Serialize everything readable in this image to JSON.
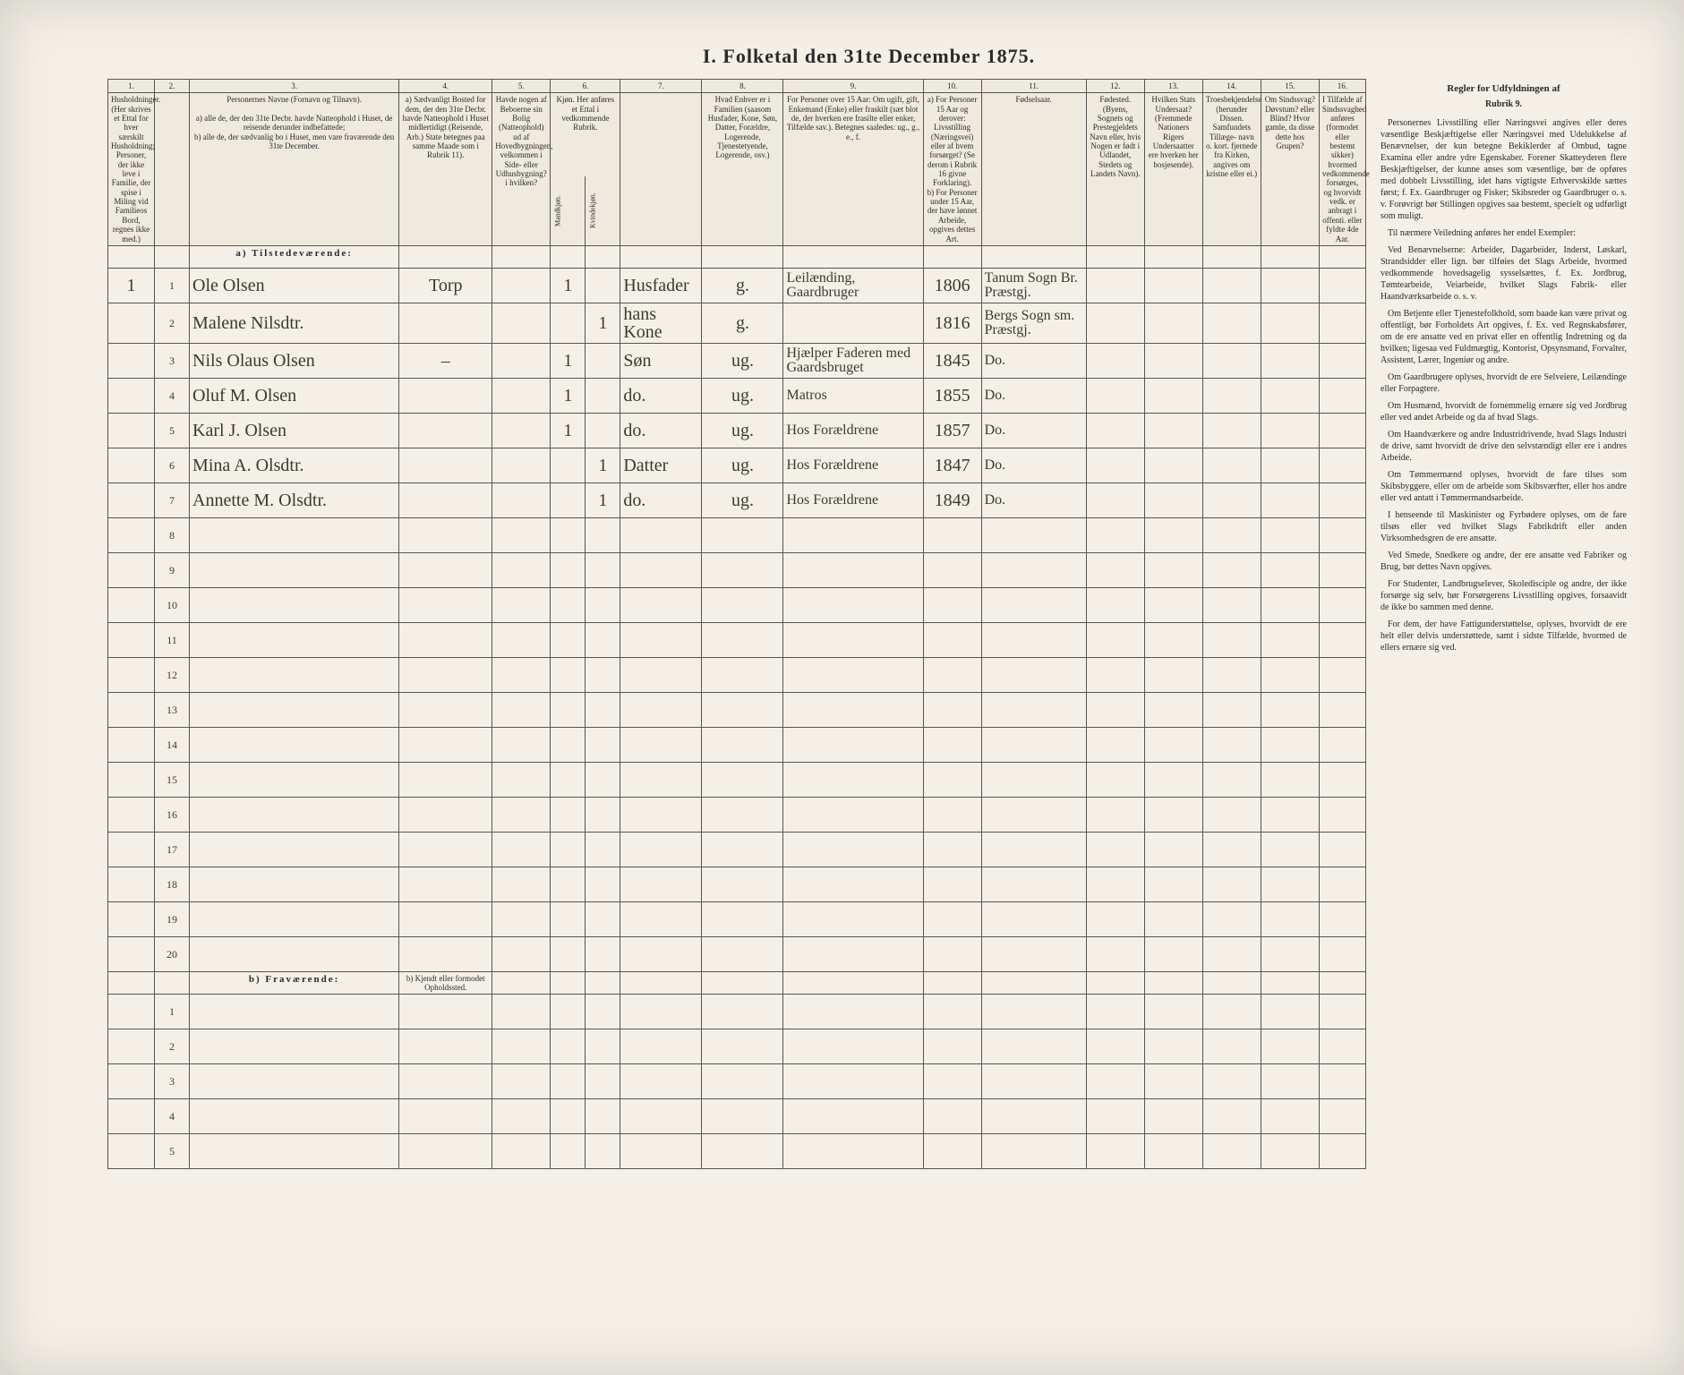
{
  "title": "I. Folketal den 31te December 1875.",
  "column_numbers": [
    "1.",
    "2.",
    "3.",
    "4.",
    "5.",
    "6.",
    "7.",
    "8.",
    "9.",
    "10.",
    "11.",
    "12.",
    "13.",
    "14.",
    "15.",
    "16."
  ],
  "column_widths_pct": [
    4,
    3,
    18,
    8,
    5,
    3,
    3,
    7,
    7,
    12,
    5,
    9,
    5,
    5,
    5,
    5,
    4
  ],
  "headers_row1": [
    "Husholdninger. (Her skrives et Ettal for hver særskilt Husholdning; Personer, der ikke leve i Familie, der spise i Miling vid Familieos Bord, regnes ikke med.)",
    "",
    "Personernes Navne (Fornavn og Tilnavn).\n\na) alle de, der den 31te Decbr. havde Natteophold i Huset, de reisende derunder indbefattede;\nb) alle de, der sædvanlig bo i Huset, men vare fraværende den 31te December.",
    "a) Sædvanligt Bosted for dem, der den 31te Decbr. havde Natteophold i Huset midlertidigt (Reisende, Arb.)  State betegnes paa samme Maade som i Rubrik 11).",
    "Havde nogen af Beboerne sin Bolig (Natteophold) ud af Hovedbygningen, velkommen i Side- eller Udhusbygning? i hvilken?",
    "Kjøn. Her anføres et Ettal i vedkommende Rubrik.",
    "",
    "Hvad Enhver er i Familien (saasom Husfader, Kone, Søn, Datter, Forældre, Logerende, Tjenestetyende, Logerende, osv.)",
    "For Personer over 15 Aar: Om ugift, gift, Enkemand (Enke) eller fraskilt (sæt blot de, der hverken ere frasilte eller enker, Tilfælde sav.). Betegnes saaledes: ug., g., e., f.",
    "a) For Personer 15 Aar og derover: Livsstilling (Næringsvei) eller af hvem forsørget? (Se derom i Rubrik 16 givne Forklaring).\nb) For Personer under 15 Aar, der have lønnet Arbeide, opgives dettes Art.",
    "Fødselsaar.",
    "Fødested.\n(Byens, Sognets og Prestegjeldets Navn eller, hvis Nogen er født i Udlandet, Stedets og Landets Navn).",
    "Hvilken Stats Undersaat?\n(Fremmede Nationers Rigers Undersaatter ere hverken her bosjesende).",
    "Troesbekjendelse (herunder Dissen. Samfundets Tillæge- navn o. kort. fjernede fra Kirken, angives om kristne eller ei.)",
    "Om Sindssvag? Døvstum? eller Blind? Hvor gamle, da disse dette hos Grupen?",
    "I Tilfælde af Sindssvaghed anføres (formodet eller bestemt sikker) hvormed vedkommende forsørges, og hvorvidt vedk. er anbragt i offenti. eller fyldte 4de Aar."
  ],
  "sex_subheaders": [
    "Mandkjøn.",
    "Kvindekjøn."
  ],
  "section_a": "a) Tilstedeværende:",
  "section_b": "b) Fraværende:",
  "section_b_col4": "b) Kjendt eller formodet Opholdssted.",
  "rows": [
    {
      "n": "1",
      "hh": "1",
      "name": "Ole Olsen",
      "c4": "Torp",
      "c5": "",
      "m": "1",
      "f": "",
      "rel": "Husfader",
      "ms": "g.",
      "occ": "Leilænding, Gaardbruger",
      "yr": "1806",
      "bp": "Tanum Sogn Br. Præstgj."
    },
    {
      "n": "2",
      "hh": "",
      "name": "Malene Nilsdtr.",
      "c4": "",
      "c5": "",
      "m": "",
      "f": "1",
      "rel": "hans Kone",
      "ms": "g.",
      "occ": "",
      "yr": "1816",
      "bp": "Bergs Sogn sm. Præstgj."
    },
    {
      "n": "3",
      "hh": "",
      "name": "Nils Olaus Olsen",
      "c4": "–",
      "c5": "",
      "m": "1",
      "f": "",
      "rel": "Søn",
      "ms": "ug.",
      "occ": "Hjælper Faderen med Gaardsbruget",
      "yr": "1845",
      "bp": "Do."
    },
    {
      "n": "4",
      "hh": "",
      "name": "Oluf M. Olsen",
      "c4": "",
      "c5": "",
      "m": "1",
      "f": "",
      "rel": "do.",
      "ms": "ug.",
      "occ": "Matros",
      "yr": "1855",
      "bp": "Do."
    },
    {
      "n": "5",
      "hh": "",
      "name": "Karl J. Olsen",
      "c4": "",
      "c5": "",
      "m": "1",
      "f": "",
      "rel": "do.",
      "ms": "ug.",
      "occ": "Hos Forældrene",
      "yr": "1857",
      "bp": "Do."
    },
    {
      "n": "6",
      "hh": "",
      "name": "Mina A. Olsdtr.",
      "c4": "",
      "c5": "",
      "m": "",
      "f": "1",
      "rel": "Datter",
      "ms": "ug.",
      "occ": "Hos Forældrene",
      "yr": "1847",
      "bp": "Do."
    },
    {
      "n": "7",
      "hh": "",
      "name": "Annette M. Olsdtr.",
      "c4": "",
      "c5": "",
      "m": "",
      "f": "1",
      "rel": "do.",
      "ms": "ug.",
      "occ": "Hos Forældrene",
      "yr": "1849",
      "bp": "Do."
    }
  ],
  "empty_rows_a": [
    "8",
    "9",
    "10",
    "11",
    "12",
    "13",
    "14",
    "15",
    "16",
    "17",
    "18",
    "19",
    "20"
  ],
  "empty_rows_b": [
    "1",
    "2",
    "3",
    "4",
    "5"
  ],
  "rules_title": "Regler for Udfyldningen af",
  "rules_sub": "Rubrik 9.",
  "rules_paragraphs": [
    "Personernes Livsstilling eller Næringsvei angives eller deres væsentlige Beskjæftigelse eller Næringsvei med Udelukkelse af Benævnelser, der kun betegne Bekiklerder af Ombud, tagne Examina eller andre ydre Egenskaber. Forener Skatteyderen flere Beskjæftigelser, der kunne anses som væsentlige, bør de opføres med dobbelt Livsstilling, idet hans vigtigste Erhvervskilde sættes først; f. Ex. Gaardbruger og Fisker; Skibsreder og Gaardbruger o. s. v. Forøvrigt bør Stillingen opgives saa bestemt, specielt og udførligt som muligt.",
    "Til nærmere Veiledning anføres her endel Exempler:",
    "Ved Benævnelserne: Arbeider, Dagarbeider, Inderst, Løskarl, Strandsidder eller lign. bør tilføies det Slags Arbeide, hvormed vedkommende hovedsagelig sysselsættes, f. Ex. Jordbrug, Tømtearbeide, Veiarbeide, hvilket Slags Fabrik- eller Haandværksarbeide o. s. v.",
    "Om Betjente eller Tjenestefolkhold, som baade kan være privat og offentligt, bør Forholdets Art opgives, f. Ex. ved Regnskabsfører, om de ere ansatte ved en privat eller en offentlig Indretning og da hvilken; ligesaa ved Fuldmægtig, Kontorist, Opsynsmand, Forvalter, Assistent, Lærer, Ingeniør og andre.",
    "Om Gaardbrugere oplyses, hvorvidt de ere Selveiere, Leilændinge eller Forpagtere.",
    "Om Husmænd, hvorvidt de fornemmelig ernære sig ved Jordbrug eller ved andet Arbeide og da af hvad Slags.",
    "Om Haandværkere og andre Industridrivende, hvad Slags Industri de drive, samt hvorvidt de drive den selvstændigt eller ere i andres Arbeide.",
    "Om Tømmermænd oplyses, hvorvidt de fare tilses som Skibsbyggere, eller om de arbeide som Skibsværfter, eller hos andre eller ved antatt i Tømmermandsarbeide.",
    "I henseende til Maskinister og Fyrbødere oplyses, om de fare tilsøs eller ved hvilket Slags Fabrikdrift eller anden Virksomhedsgren de ere ansatte.",
    "Ved Smede, Snedkere og andre, der ere ansatte ved Fabriker og Brug, bør dettes Navn opgives.",
    "For Studenter, Landbrugselever, Skoledisciple og andre, der ikke forsørge sig selv, bør Forsørgerens Livsstilling opgives, forsaavidt de ikke bo sammen med denne.",
    "For dem, der have Fattigunderstøttelse, oplyses, hvorvidt de ere helt eller delvis understøttede, samt i sidste Tilfælde, hvormed de ellers ernære sig ved."
  ]
}
